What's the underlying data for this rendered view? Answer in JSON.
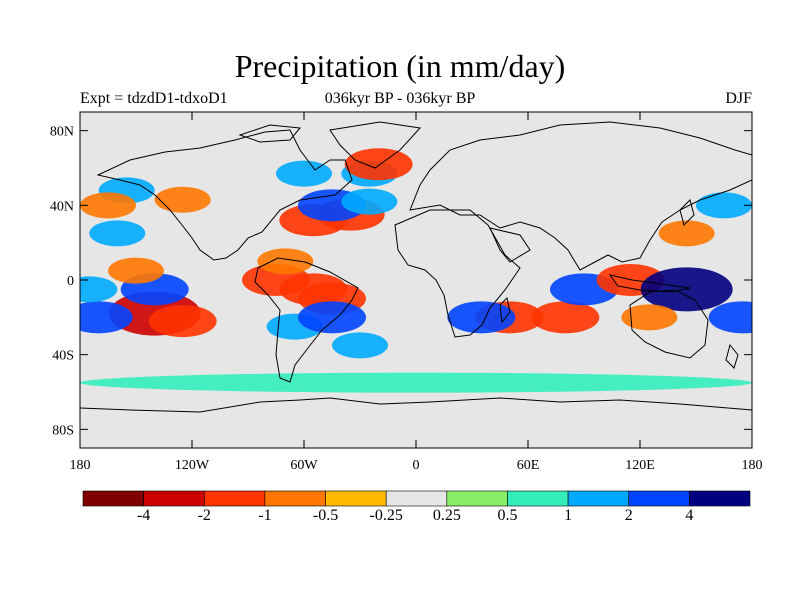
{
  "title": "Precipitation (in mm/day)",
  "left_string": "Expt = tdzdD1-tdxoD1",
  "center_string": "036kyr BP - 036kyr BP",
  "right_string": "DJF",
  "lat_ticks": [
    "80N",
    "40N",
    "0",
    "40S",
    "80S"
  ],
  "lon_ticks": [
    "180",
    "120W",
    "60W",
    "0",
    "60E",
    "120E",
    "180"
  ],
  "colorbar": {
    "colors": [
      "#800000",
      "#cc0000",
      "#ff3300",
      "#ff7700",
      "#ffbb00",
      "#e6e6e6",
      "#88ee66",
      "#33eebb",
      "#00aaff",
      "#0044ff",
      "#000080"
    ],
    "labels": [
      "-4",
      "-2",
      "-1",
      "-0.5",
      "-0.25",
      "0.25",
      "0.5",
      "1",
      "2",
      "4"
    ]
  },
  "colors": {
    "background_field": "#e6e6e6",
    "coastline": "#000000"
  },
  "chart_data": {
    "type": "heatmap",
    "variable": "Precipitation",
    "units": "mm/day",
    "season": "DJF",
    "xlim": [
      -180,
      180
    ],
    "ylim": [
      -90,
      90
    ],
    "levels": [
      -4,
      -2,
      -1,
      -0.5,
      -0.25,
      0.25,
      0.5,
      1,
      2,
      4
    ],
    "anomalies": [
      {
        "lon": -140,
        "lat": -18,
        "value": -4
      },
      {
        "lon": -125,
        "lat": -22,
        "value": -2
      },
      {
        "lon": -170,
        "lat": -20,
        "value": 2
      },
      {
        "lon": -175,
        "lat": -5,
        "value": 1
      },
      {
        "lon": -140,
        "lat": -5,
        "value": 2
      },
      {
        "lon": -150,
        "lat": 5,
        "value": -1
      },
      {
        "lon": -75,
        "lat": 0,
        "value": -2
      },
      {
        "lon": -55,
        "lat": -5,
        "value": -2
      },
      {
        "lon": -45,
        "lat": -10,
        "value": -2
      },
      {
        "lon": -65,
        "lat": -25,
        "value": 1
      },
      {
        "lon": -45,
        "lat": -20,
        "value": 2
      },
      {
        "lon": -70,
        "lat": 10,
        "value": -1
      },
      {
        "lon": -55,
        "lat": 32,
        "value": -2
      },
      {
        "lon": -35,
        "lat": 35,
        "value": -2
      },
      {
        "lon": -45,
        "lat": 40,
        "value": 2
      },
      {
        "lon": -25,
        "lat": 42,
        "value": 1
      },
      {
        "lon": -60,
        "lat": 57,
        "value": 1
      },
      {
        "lon": -25,
        "lat": 57,
        "value": 1
      },
      {
        "lon": -20,
        "lat": 62,
        "value": -2
      },
      {
        "lon": -155,
        "lat": 48,
        "value": 1
      },
      {
        "lon": -165,
        "lat": 40,
        "value": -1
      },
      {
        "lon": -125,
        "lat": 43,
        "value": -1
      },
      {
        "lon": -160,
        "lat": 25,
        "value": 1
      },
      {
        "lon": -30,
        "lat": -35,
        "value": 1
      },
      {
        "lon": 50,
        "lat": -20,
        "value": -2
      },
      {
        "lon": 80,
        "lat": -20,
        "value": -2
      },
      {
        "lon": 35,
        "lat": -20,
        "value": 2
      },
      {
        "lon": 90,
        "lat": -5,
        "value": 2
      },
      {
        "lon": 115,
        "lat": 0,
        "value": -2
      },
      {
        "lon": 145,
        "lat": -5,
        "value": 4
      },
      {
        "lon": 125,
        "lat": -20,
        "value": -1
      },
      {
        "lon": 175,
        "lat": -20,
        "value": 2
      },
      {
        "lon": 145,
        "lat": 25,
        "value": -1
      },
      {
        "lon": 165,
        "lat": 40,
        "value": 1
      },
      {
        "lon": 0,
        "lat": -55,
        "value": 0.5
      }
    ]
  }
}
